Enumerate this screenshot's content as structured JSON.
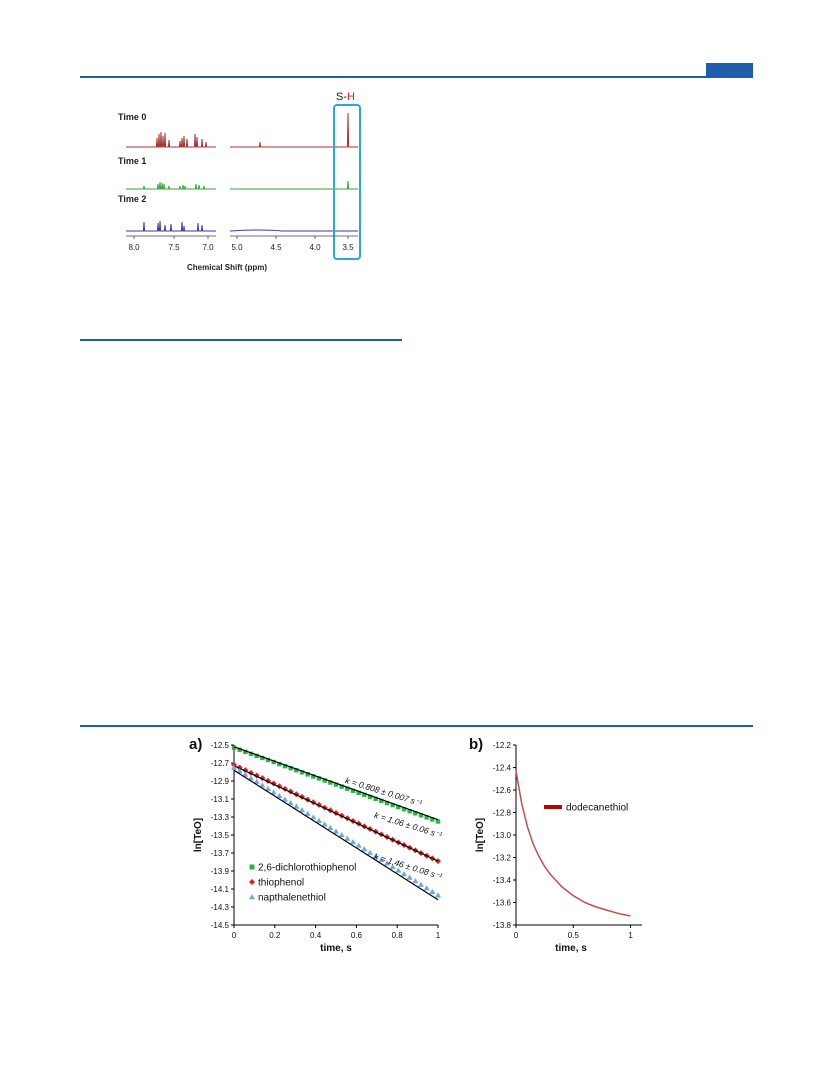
{
  "nmr": {
    "times": [
      "Time 0",
      "Time 1",
      "Time 2"
    ],
    "colors": [
      "#a83232",
      "#35a235",
      "#3a3aa8"
    ],
    "left_ticks": [
      "8.0",
      "7.5",
      "7.0"
    ],
    "right_ticks": [
      "5.0",
      "4.5",
      "4.0",
      "3.5"
    ],
    "xlabel": "Chemical Shift (ppm)",
    "sh_label_s": "S-",
    "sh_label_h": "H",
    "box_color": "#29a8e0"
  },
  "chart_data": [
    {
      "type": "scatter",
      "panel_label": "a)",
      "xlabel": "time, s",
      "ylabel": "ln[TeO]",
      "xlim": [
        0,
        1
      ],
      "ylim": [
        -14.5,
        -12.5
      ],
      "xticks": [
        "0",
        "0.2",
        "0.4",
        "0.6",
        "0.8",
        "1"
      ],
      "yticks": [
        "-12.5",
        "-12.7",
        "-12.9",
        "-13.1",
        "-13.3",
        "-13.5",
        "-13.7",
        "-13.9",
        "-14.1",
        "-14.3",
        "-14.5"
      ],
      "legend_position": "bottom-left",
      "series": [
        {
          "name": "2,6-dichlorothiophenol",
          "color": "#2db24a",
          "marker": "square",
          "start": -12.53,
          "end": -13.35,
          "fit_start": -12.52,
          "fit_end": -13.33,
          "annotation": "k = 0.808 ± 0.007 s⁻¹"
        },
        {
          "name": "thiophenol",
          "color": "#e0202a",
          "marker": "diamond",
          "start": -12.72,
          "end": -13.79,
          "fit_start": -12.73,
          "fit_end": -13.79,
          "annotation": "k = 1.06 ± 0.06 s⁻¹"
        },
        {
          "name": "napthalenethiol",
          "color": "#6fa8dc",
          "marker": "triangle",
          "start": -12.75,
          "end": -14.17,
          "fit_start": -12.78,
          "fit_end": -14.22,
          "annotation": "k = 1.46 ± 0.08 s⁻¹"
        }
      ]
    },
    {
      "type": "line",
      "panel_label": "b)",
      "xlabel": "time, s",
      "ylabel": "ln[TeO]",
      "xlim": [
        0,
        1.1
      ],
      "ylim": [
        -13.8,
        -12.2
      ],
      "xticks": [
        "0",
        "0.5",
        "1"
      ],
      "yticks": [
        "-12.2",
        "-12.4",
        "-12.6",
        "-12.8",
        "-13.0",
        "-13.2",
        "-13.4",
        "-13.6",
        "-13.8"
      ],
      "legend_position": "top-right",
      "series": [
        {
          "name": "dodecanethiol",
          "color": "#c0504d",
          "x": [
            0,
            0.02,
            0.05,
            0.1,
            0.15,
            0.2,
            0.25,
            0.3,
            0.4,
            0.5,
            0.6,
            0.7,
            0.8,
            0.9,
            1.0
          ],
          "y": [
            -12.43,
            -12.55,
            -12.72,
            -12.93,
            -13.08,
            -13.19,
            -13.28,
            -13.35,
            -13.46,
            -13.54,
            -13.6,
            -13.64,
            -13.67,
            -13.7,
            -13.72
          ]
        }
      ]
    }
  ]
}
